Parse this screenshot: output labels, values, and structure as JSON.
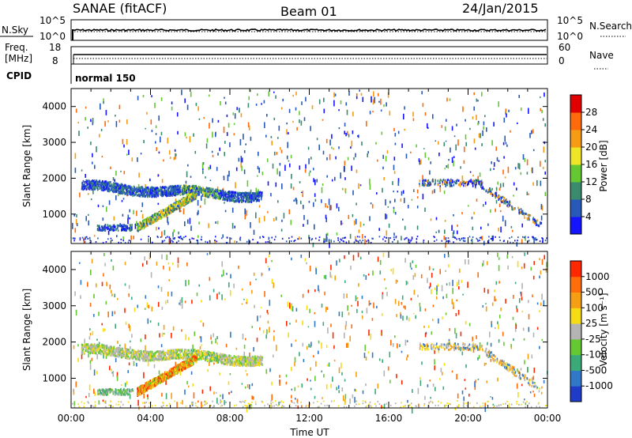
{
  "header": {
    "title": "SANAE (fitACF)",
    "beam": "Beam 01",
    "date": "24/Jan/2015"
  },
  "status_panel": {
    "nsky_label": "N.Sky",
    "nsearch_label": "N.Search",
    "nsky_ticks": [
      "10^5",
      "10^0"
    ],
    "nsearch_ticks": [
      "10^5",
      "10^0"
    ],
    "freq_label_line1": "Freq.",
    "freq_label_line2": "[MHz]",
    "freq_ticks": [
      "18",
      "8"
    ],
    "nave_label": "Nave",
    "nave_ticks": [
      "60",
      "0"
    ],
    "cpid_label": "CPID",
    "cpid_value": "normal 150"
  },
  "chart_data": [
    {
      "type": "heatmap",
      "name": "power",
      "xlabel": "",
      "ylabel": "Slant Range [km]",
      "xlim": [
        0,
        24
      ],
      "ylim": [
        180,
        4500
      ],
      "x_ticks": [
        "00:00",
        "04:00",
        "08:00",
        "12:00",
        "16:00",
        "20:00",
        "00:00"
      ],
      "y_ticks": [
        1000,
        2000,
        3000,
        4000
      ],
      "colorbar": {
        "label": "Power [dB]",
        "range": [
          0,
          32
        ],
        "ticks": [
          4,
          8,
          12,
          16,
          20,
          24,
          28
        ],
        "colors": [
          "#1414ff",
          "#2859b8",
          "#3a8a6e",
          "#64c832",
          "#f0e628",
          "#f59b14",
          "#ff6a0a",
          "#e10000"
        ]
      },
      "features": [
        {
          "start_hour": 0.5,
          "end_hour": 9.6,
          "range_start_km": 1800,
          "range_end_km": 1500,
          "description_value": "F-region scatter band"
        },
        {
          "start_hour": 3.5,
          "end_hour": 6.2,
          "range_start_km": 700,
          "range_end_km": 1600,
          "description_value": "rising echo band"
        },
        {
          "start_hour": 17.5,
          "end_hour": 23.5,
          "range_start_km": 1900,
          "range_end_km": 700,
          "description_value": "late scatter"
        }
      ]
    },
    {
      "type": "heatmap",
      "name": "velocity",
      "xlabel": "Time UT",
      "ylabel": "Slant Range [km]",
      "xlim": [
        0,
        24
      ],
      "ylim": [
        180,
        4500
      ],
      "x_ticks": [
        "00:00",
        "04:00",
        "08:00",
        "12:00",
        "16:00",
        "20:00",
        "00:00"
      ],
      "y_ticks": [
        1000,
        2000,
        3000,
        4000
      ],
      "colorbar": {
        "label": "Velocity [m s⁻¹]",
        "ticks": [
          "1000",
          "500",
          "100",
          "25",
          "-25",
          "-100",
          "-500",
          "-1000"
        ],
        "colors": [
          "#1e3cc8",
          "#3278c8",
          "#3caa78",
          "#64c832",
          "#b4b4b4",
          "#f5dc14",
          "#f5a014",
          "#ff6e0a",
          "#ff2800"
        ]
      }
    }
  ]
}
